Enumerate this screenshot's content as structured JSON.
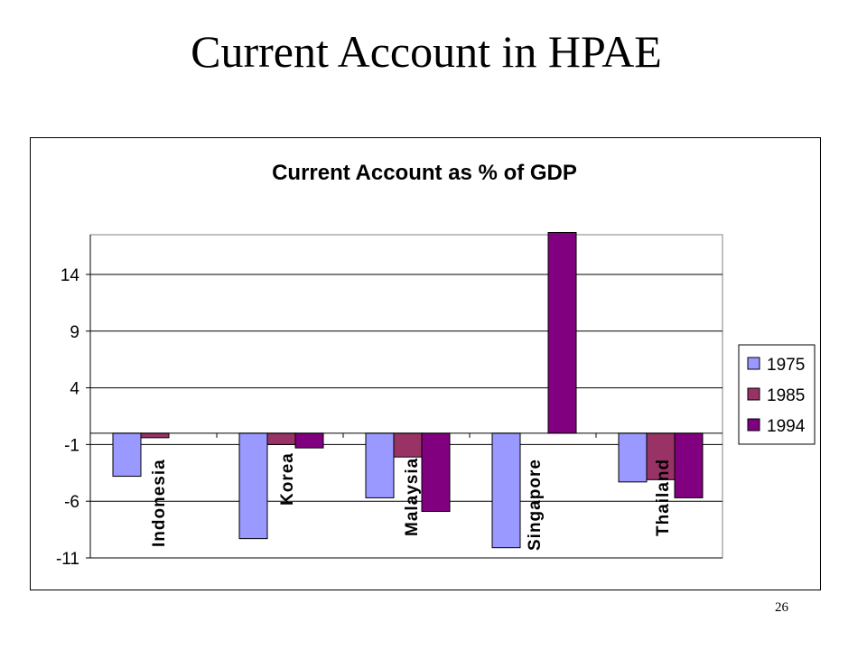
{
  "slide": {
    "title": "Current Account in HPAE",
    "page_number": "26"
  },
  "chart_data": {
    "type": "bar",
    "title": "Current Account as % of GDP",
    "xlabel": "",
    "ylabel": "",
    "categories": [
      "Indonesia",
      "Korea",
      "Malaysia",
      "Singapore",
      "Thailand"
    ],
    "series": [
      {
        "name": "1975",
        "values": [
          -3.8,
          -9.3,
          -5.7,
          -10.1,
          -4.3
        ],
        "color": "#9999FF"
      },
      {
        "name": "1985",
        "values": [
          -0.4,
          -1.0,
          -2.1,
          0,
          -4.1
        ],
        "color": "#993366"
      },
      {
        "name": "1994",
        "values": [
          0.0,
          -1.3,
          -6.9,
          17.7,
          -5.7
        ],
        "color": "#800080"
      }
    ],
    "y_ticks": [
      14,
      9,
      4,
      -1,
      -6,
      -11
    ],
    "ylim": [
      -11,
      17.5
    ],
    "grid": true,
    "legend_position": "right",
    "category_labels_position": "vertical, below the zero line"
  }
}
